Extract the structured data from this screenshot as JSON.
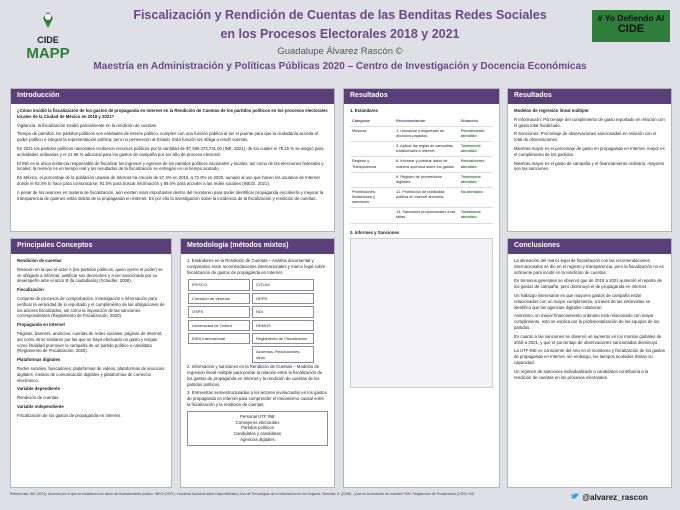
{
  "header": {
    "logo": "CIDE",
    "logo_sub": "MAPP",
    "title_1": "Fiscalización y Rendición de Cuentas de las Benditas Redes Sociales",
    "title_2": "en los Procesos Electorales 2018 y 2021",
    "author": "Guadalupe Álvarez Rascón ©",
    "subtitle": "Maestría en Administración y Políticas Públicas 2020 – Centro de Investigación y Docencia Económicas",
    "badge_1": "# Yo Defiendo Al",
    "badge_2": "CIDE"
  },
  "intro": {
    "title": "Introducción",
    "items": [
      "¿Cómo incidió la fiscalización de los gastos de propaganda en Internet en la Rendición de Cuentas de los partidos políticos en los procesos electorales locales de la Ciudad de México en 2018 y 2021?",
      "Vigilancia: la fiscalización incidió parcialmente en la rendición de cuentas.",
      "Tiempo de partidos: los partidos políticos son entidades de interés público, cumplen con una función pública al ser el puente para que la ciudadanía acceda al poder político e integrar la representación política; pero no pertenecen al Estado. Esta función los obliga a rendir cuentas.",
      "En 2021 los partidos políticos nacionales recibieron recursos públicos por la cantidad de $7,396,473,731.00 (INE, 2021); de los cuales el 79.15 % se asignó para actividades ordinarias y el 21.95 % adicional para los gastos de campaña por ser año de proceso electoral.",
      "El INE es la única instancia responsable de fiscalizar los ingresos y egresos de los partidos políticos nacionales y locales, así como de las elecciones federales y locales; la revisión es en tiempo real y los resultados de la fiscalización se entregan en un tiempo acotado.",
      "En México, el porcentaje de la población usuaria de Internet ha crecido de 57.4% en 2015, a 72.0% en 2020, aunado al uso que hacen los usuarios de Internet donde el 93.4% lo hace para comunicarse; 91.5% para buscar información y 89.0% para acceder a las redes sociales (INEGI, 2021).",
      "A pesar de los avances en materia de fiscalización, aún existen retos importantes dentro del monitoreo para poder identificar propaganda encubierta y mejorar la transparencia de quiénes están detrás de la propaganda en Internet. Es por ello la investigación sobre la incidencia de la fiscalización y rendición de cuentas."
    ]
  },
  "concepts": {
    "title": "Principales Conceptos",
    "items": [
      "Rendición de cuentas",
      "Relación en la que el actor A (los partidos políticos, quien ejerce el poder) se ve obligado a informar, justificar sus decisiones y a ser sancionado por su desempeño ante el actor B (la ciudadanía) (Schedler, 2008).",
      "Fiscalización",
      "Conjunto de procesos de comprobación, investigación e información para verificar la veracidad de lo reportado y el cumplimiento de las obligaciones de los actores fiscalizados, así como la imposición de las sanciones correspondientes (Reglamento de Fiscalización, 2020).",
      "Propaganda en Internet",
      "Páginas, banners, anuncios, cuentas de redes sociales, páginas de Internet, así como otros similares por las que se haya efectuado un gasto y tengan como finalidad promover la campaña de un partido político o candidato (Reglamento de Fiscalización, 2020).",
      "Plataformas digitales",
      "Redes sociales, buscadores, plataformas de videos, plataformas de anuncios digitales, medios de comunicación digitales y plataformas de comercio electrónico.",
      "Variable dependiente",
      "Rendición de cuentas.",
      "Variable independiente",
      "Fiscalización de los gastos de propaganda en Internet."
    ]
  },
  "method": {
    "title": "Metodología (métodos mixtos)",
    "items": [
      "1. Estándares en la Rendición de Cuentas – Análisis documental y comparativo entre recomendaciones internacionales y marco legal sobre fiscalización de gastos de propaganda en Internet.",
      "2. Información y sanciones en la Rendición de Cuentas – Modelos de regresión lineal múltiple para probar la relación entre la fiscalización de los gastos de propaganda en Internet y la rendición de cuentas de los partidos políticos.",
      "3. Entrevistas semiestructuradas a los actores involucrados en los gastos de propaganda en Internet para comprender el mecanismo causal entre la fiscalización y la rendición de cuentas."
    ],
    "sources": [
      "IFESCO",
      "Comisión de Venecia",
      "OSPS",
      "Universidad de Oxford",
      "IDEA Internacional"
    ],
    "sources_2": [
      "CITLAS",
      "OEPS",
      "NDI",
      "DEMOS",
      "Reglamento de Fiscalización",
      "Acuerdos, Resoluciones, otros"
    ],
    "actors": [
      "Personal UTF INE",
      "Consejeros electorales",
      "Partidos políticos",
      "Candidatos y candidatas",
      "Agencias digitales"
    ]
  },
  "results": {
    "title": "Resultados",
    "sub_1": "1. Estándares",
    "sub_2": "2. Informes y Sanciones",
    "head": [
      "Categoría",
      "Recomendación",
      "Situación"
    ],
    "rows": [
      [
        "Mínimas",
        "1. Ubicación y etiquetado de anuncios pagados.",
        "Parcialmente atendido"
      ],
      [
        "",
        "3. Aplicar las reglas de campañas tradicionales a Internet.",
        "Totalmente atendido"
      ],
      [
        "Registro y Transparencia",
        "6. Informar y publicar datos de manera oportuna sobre los gastos.",
        "Parcialmente atendido"
      ],
      [
        "",
        "8. Registro de proveedores digitales.",
        "Totalmente atendido"
      ],
      [
        "Prohibiciones, limitaciones y sanciones",
        "11. Prohibición de publicidad política en Internet anónima.",
        "No atendido"
      ],
      [
        "",
        "13. Sanciones proporcionales a las faltas.",
        "Totalmente atendido"
      ]
    ]
  },
  "results2": {
    "title": "Resultados",
    "items": [
      "Modelos de regresión lineal múltiple:",
      "R Información: Porcentaje del cumplimiento de gasto reportado en relación con el gasto total fiscalizado.",
      "R Sanciones: Porcentaje de observaciones sancionadas en relación con el total de observaciones.",
      "Mientras mayor es el porcentaje de gasto en propaganda en Internet, mayor es el cumplimiento de los partidos.",
      "Mientras mayor es el gasto de campaña y el financiamiento ordinario, mayores son las sanciones."
    ]
  },
  "conclusions": {
    "title": "Conclusiones",
    "items": [
      "La alineación del marco legal de fiscalización con las recomendaciones internacionales se dio en el registro y transparencia, pero la fiscalización no es suficiente para incidir en la rendición de cuentas.",
      "En términos generales se observó que de 2018 a 2021 aumentó el reporte de los gastos de campaña, pero disminuyó el de propaganda en Internet.",
      "Un hallazgo interesante es que mayores gastos de campaña están relacionados con un mayor cumplimiento, a través de las entrevistas se identificó que las agencias digitales colaboran.",
      "Asimismo, un mayor financiamiento ordinario está relacionado con mayor cumplimiento, esto se explica por la profesionalización de los equipos de los partidos.",
      "En cuanto a las sanciones se observó un aumento en los montos globales de 2018 a 2021, y que el porcentaje de observaciones sancionadas disminuyó.",
      "La UTF-INE es consciente del reto en el monitoreo y fiscalización de los gastos de propaganda en Internet, sin embargo, los tiempos acotados limitan su capacidad.",
      "Un régimen de sanciones individualizado a candidatos contribuiría a la rendición de cuentas en los procesos electorales."
    ]
  },
  "footer": {
    "references": "Referencias: INE (2021). Acuerdo por el que se establecen las cifras del financiamiento público. INEGI (2021). Encuesta Nacional sobre Disponibilidad y Uso de Tecnologías de la Información en los Hogares. Schedler, A. (2008). ¿Qué es la rendición de cuentas? IFAI. Reglamento de Fiscalización (2020). INE.",
    "twitter": "@alvarez_rascon"
  }
}
